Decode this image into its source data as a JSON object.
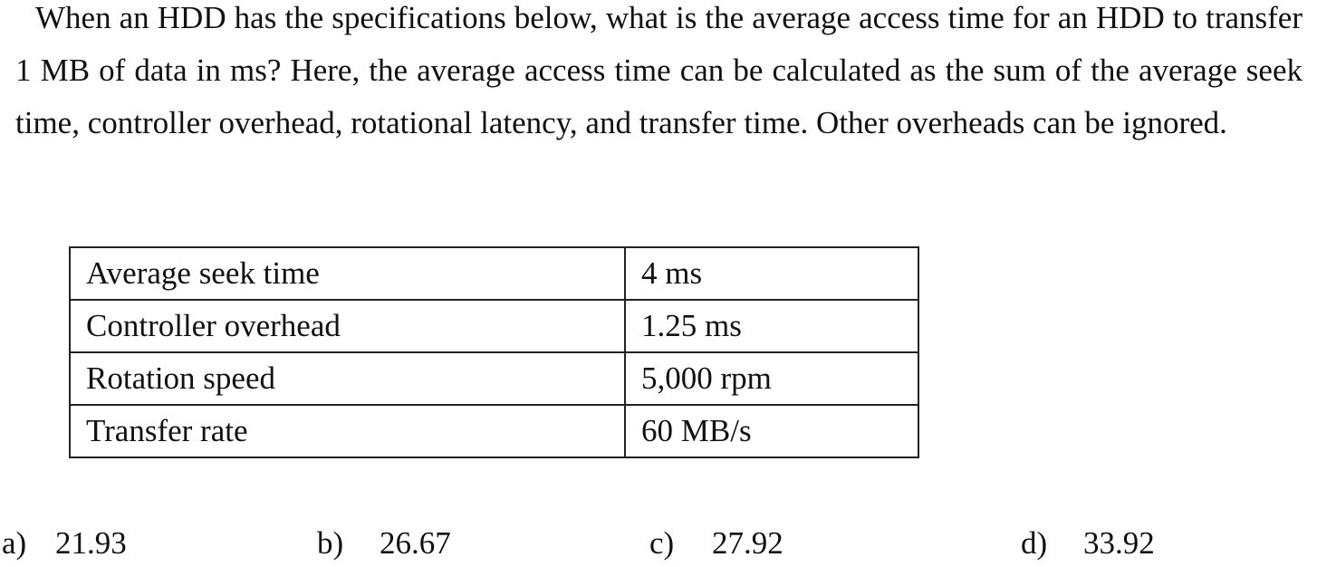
{
  "question": {
    "text": "When an HDD has the specifications below, what is the average access time for an HDD to transfer 1 MB of data in ms? Here, the average access time can be calculated as the sum of the average seek time, controller overhead, rotational latency, and transfer time. Other overheads can be ignored."
  },
  "specs": [
    {
      "label": "Average seek time",
      "value": "4 ms"
    },
    {
      "label": "Controller overhead",
      "value": "1.25 ms"
    },
    {
      "label": "Rotation speed",
      "value": "5,000 rpm"
    },
    {
      "label": "Transfer rate",
      "value": "60 MB/s"
    }
  ],
  "options": [
    {
      "letter": "a)",
      "value": "21.93"
    },
    {
      "letter": "b)",
      "value": "26.67"
    },
    {
      "letter": "c)",
      "value": "27.92"
    },
    {
      "letter": "d)",
      "value": "33.92"
    }
  ]
}
